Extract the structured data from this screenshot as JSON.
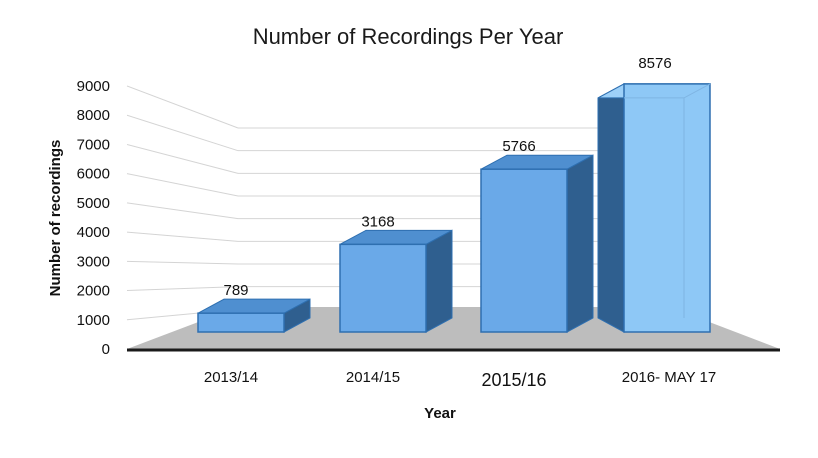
{
  "chart_data": {
    "type": "bar",
    "title": "Number of Recordings Per Year",
    "xlabel": "Year",
    "ylabel": "Number of recordings",
    "categories": [
      "2013/14",
      "2014/15",
      "2015/16",
      "2016- MAY 17"
    ],
    "values": [
      789,
      3168,
      5766,
      8576
    ],
    "data_labels": [
      "789",
      "3168",
      "5766",
      "8576"
    ],
    "ylim": [
      0,
      9000
    ],
    "yticks": [
      "0",
      "1000",
      "2000",
      "3000",
      "4000",
      "5000",
      "6000",
      "7000",
      "8000",
      "9000"
    ],
    "grid": true,
    "legend": "none",
    "style": "3d-column",
    "colors": {
      "bar_front": "#6aa9e8",
      "bar_front_last": "#8ec8f6",
      "bar_side": "#2f5f8f",
      "bar_edge": "#2e6fb0",
      "floor": "#bdbdbd",
      "gridline": "#d4d4d4"
    }
  }
}
